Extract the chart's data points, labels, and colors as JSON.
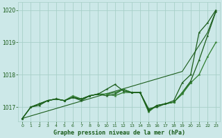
{
  "title": "Graphe pression niveau de la mer (hPa)",
  "background_color": "#cce8e8",
  "grid_color": "#a8cfc8",
  "line_color_dark": "#1a5c1a",
  "line_color_mid": "#2e7d2e",
  "xlim": [
    -0.5,
    23.5
  ],
  "ylim": [
    1016.55,
    1020.25
  ],
  "yticks": [
    1017,
    1018,
    1019,
    1020
  ],
  "xticks": [
    0,
    1,
    2,
    3,
    4,
    5,
    6,
    7,
    8,
    9,
    10,
    11,
    12,
    13,
    14,
    15,
    16,
    17,
    18,
    19,
    20,
    21,
    22,
    23
  ],
  "series_triangle": {
    "x": [
      0,
      19,
      22,
      23
    ],
    "y": [
      1016.65,
      1018.1,
      1019.3,
      1019.97
    ]
  },
  "series_upper": {
    "x": [
      0,
      1,
      2,
      3,
      4,
      5,
      6,
      7,
      8,
      9,
      10,
      11,
      12,
      13,
      14,
      15,
      16,
      17,
      18,
      19,
      20,
      21,
      22,
      23
    ],
    "y": [
      1016.65,
      1017.0,
      1017.1,
      1017.2,
      1017.25,
      1017.2,
      1017.3,
      1017.25,
      1017.35,
      1017.4,
      1017.55,
      1017.7,
      1017.5,
      1017.45,
      1017.45,
      1016.9,
      1017.05,
      1017.1,
      1017.2,
      1017.75,
      1018.0,
      1019.3,
      1019.6,
      1020.0
    ]
  },
  "series_lower": {
    "x": [
      0,
      1,
      2,
      3,
      4,
      5,
      6,
      7,
      8,
      9,
      10,
      11,
      12,
      13,
      14,
      15,
      16,
      17,
      18,
      19,
      20,
      21,
      22,
      23
    ],
    "y": [
      1016.65,
      1017.0,
      1017.1,
      1017.2,
      1017.25,
      1017.2,
      1017.3,
      1017.25,
      1017.35,
      1017.4,
      1017.4,
      1017.35,
      1017.45,
      1017.45,
      1017.45,
      1016.85,
      1017.05,
      1017.1,
      1017.15,
      1017.4,
      1017.75,
      1018.0,
      1018.55,
      1019.0
    ]
  },
  "series_mid1": {
    "x": [
      0,
      1,
      2,
      3,
      4,
      5,
      6,
      7,
      8,
      9,
      10,
      11,
      12,
      13,
      14,
      15,
      16,
      17,
      18,
      19,
      20,
      21,
      22,
      23
    ],
    "y": [
      1016.65,
      1017.0,
      1017.05,
      1017.2,
      1017.25,
      1017.2,
      1017.3,
      1017.2,
      1017.35,
      1017.4,
      1017.35,
      1017.4,
      1017.55,
      1017.45,
      1017.45,
      1016.95,
      1017.0,
      1017.1,
      1017.15,
      1017.45,
      1017.8,
      1018.45,
      1019.2,
      1019.95
    ]
  },
  "series_mid2": {
    "x": [
      1,
      2,
      3,
      4,
      5,
      6,
      7,
      8,
      9,
      10,
      11,
      12,
      13,
      14,
      15,
      16,
      17,
      18,
      19,
      20
    ],
    "y": [
      1017.0,
      1017.1,
      1017.2,
      1017.25,
      1017.2,
      1017.35,
      1017.25,
      1017.35,
      1017.4,
      1017.4,
      1017.45,
      1017.55,
      1017.45,
      1017.45,
      1016.88,
      1017.05,
      1017.1,
      1017.15,
      1017.45,
      1017.75
    ]
  }
}
